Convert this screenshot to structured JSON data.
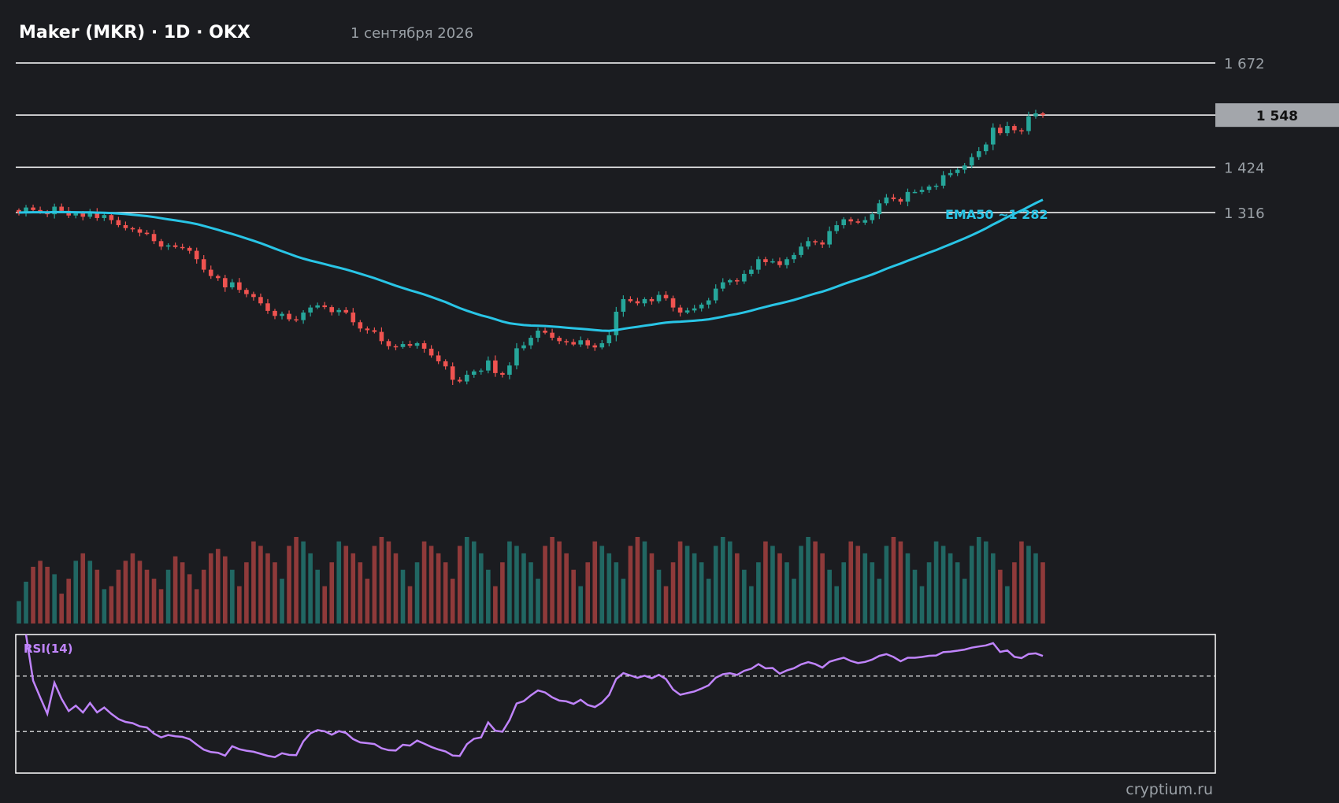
{
  "header": {
    "title": "Maker (MKR) · 1D · OKX",
    "date": "1 сентября 2026"
  },
  "watermark": "cryptium.ru",
  "colors": {
    "background": "#1b1c20",
    "up": "#26a69a",
    "down": "#ef5350",
    "ema": "#29c5e6",
    "rsi": "#c084fc",
    "text": "#ffffff",
    "muted": "#9aa0a6",
    "price_tag_bg": "#a3a6ab"
  },
  "chart_data": {
    "type": "candlestick",
    "price_levels": [
      {
        "value": 1672,
        "label": "1 672"
      },
      {
        "value": 1548,
        "label": "1 548",
        "current": true
      },
      {
        "value": 1424,
        "label": "1 424"
      },
      {
        "value": 1316,
        "label": "1 316"
      }
    ],
    "ema": {
      "name": "EMA50",
      "label": "EMA50 ~1 282",
      "last": 1282
    },
    "rsi": {
      "label": "RSI(14)",
      "range": [
        0,
        100
      ],
      "levels": [
        70,
        30
      ]
    },
    "closes": [
      1316,
      1328,
      1322,
      1318,
      1312,
      1330,
      1320,
      1309,
      1314,
      1306,
      1317,
      1303,
      1310,
      1298,
      1286,
      1279,
      1276,
      1268,
      1265,
      1248,
      1235,
      1238,
      1234,
      1232,
      1225,
      1205,
      1180,
      1165,
      1160,
      1138,
      1150,
      1132,
      1122,
      1115,
      1100,
      1082,
      1070,
      1075,
      1062,
      1060,
      1078,
      1090,
      1095,
      1091,
      1079,
      1084,
      1078,
      1055,
      1040,
      1036,
      1032,
      1010,
      998,
      996,
      1003,
      999,
      1005,
      992,
      976,
      962,
      950,
      918,
      914,
      930,
      938,
      940,
      964,
      934,
      930,
      952,
      993,
      1000,
      1018,
      1035,
      1030,
      1018,
      1010,
      1008,
      1002,
      1012,
      1000,
      995,
      1005,
      1024,
      1080,
      1110,
      1105,
      1100,
      1110,
      1105,
      1120,
      1112,
      1090,
      1078,
      1083,
      1088,
      1097,
      1107,
      1135,
      1150,
      1155,
      1152,
      1170,
      1180,
      1205,
      1198,
      1200,
      1191,
      1205,
      1215,
      1235,
      1248,
      1245,
      1240,
      1272,
      1286,
      1300,
      1295,
      1292,
      1298,
      1312,
      1338,
      1352,
      1348,
      1342,
      1365,
      1365,
      1370,
      1378,
      1380,
      1405,
      1410,
      1418,
      1428,
      1448,
      1462,
      1478,
      1518,
      1505,
      1522,
      1512,
      1510,
      1545,
      1552,
      1548
    ],
    "volumes": [
      15,
      28,
      38,
      42,
      38,
      33,
      20,
      30,
      42,
      47,
      42,
      36,
      23,
      25,
      36,
      42,
      47,
      42,
      36,
      30,
      23,
      36,
      45,
      41,
      33,
      23,
      36,
      47,
      50,
      45,
      36,
      25,
      41,
      55,
      52,
      47,
      41,
      30,
      52,
      58,
      55,
      47,
      36,
      25,
      41,
      55,
      52,
      47,
      41,
      30,
      52,
      58,
      55,
      47,
      36,
      25,
      41,
      55,
      52,
      47,
      41,
      30,
      52,
      58,
      55,
      47,
      36,
      25,
      41,
      55,
      52,
      47,
      41,
      30,
      52,
      58,
      55,
      47,
      36,
      25,
      41,
      55,
      52,
      47,
      41,
      30,
      52,
      58,
      55,
      47,
      36,
      25,
      41,
      55,
      52,
      47,
      41,
      30,
      52,
      58,
      55,
      47,
      36,
      25,
      41,
      55,
      52,
      47,
      41,
      30,
      52,
      58,
      55,
      47,
      36,
      25,
      41,
      55,
      52,
      47,
      41,
      30,
      52,
      58,
      55,
      47,
      36,
      25,
      41,
      55,
      52,
      47,
      41,
      30,
      52,
      58,
      55,
      47,
      36,
      25,
      41,
      55,
      52,
      47,
      41
    ]
  }
}
